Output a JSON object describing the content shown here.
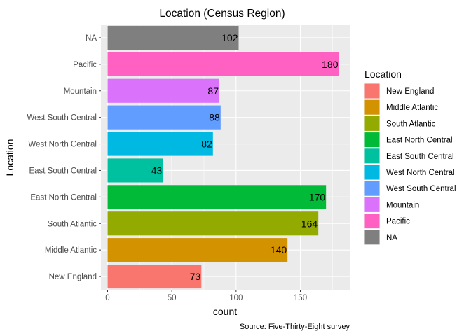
{
  "chart_data": {
    "type": "bar",
    "orientation": "horizontal",
    "title": "Location (Census Region)",
    "xlabel": "count",
    "ylabel": "Location",
    "caption": "Source: Five-Thirty-Eight survey",
    "categories": [
      "New England",
      "Middle Atlantic",
      "South Atlantic",
      "East North Central",
      "East South Central",
      "West North Central",
      "West South Central",
      "Mountain",
      "Pacific",
      "NA"
    ],
    "values": [
      73,
      140,
      164,
      170,
      43,
      82,
      88,
      87,
      180,
      102
    ],
    "colors": [
      "#F8766D",
      "#D39200",
      "#93AA00",
      "#00BA38",
      "#00C19F",
      "#00B9E3",
      "#619CFF",
      "#DB72FB",
      "#FF61C3",
      "#7F7F7F"
    ],
    "x_ticks": [
      "0",
      "50",
      "100",
      "150"
    ],
    "xlim": [
      0,
      186
    ],
    "grid": true,
    "panel_background": "#EBEBEB",
    "legend": {
      "title": "Location",
      "position": "right",
      "labels": [
        "New England",
        "Middle Atlantic",
        "South Atlantic",
        "East North Central",
        "East South Central",
        "West North Central",
        "West South Central",
        "Mountain",
        "Pacific",
        "NA"
      ]
    }
  }
}
